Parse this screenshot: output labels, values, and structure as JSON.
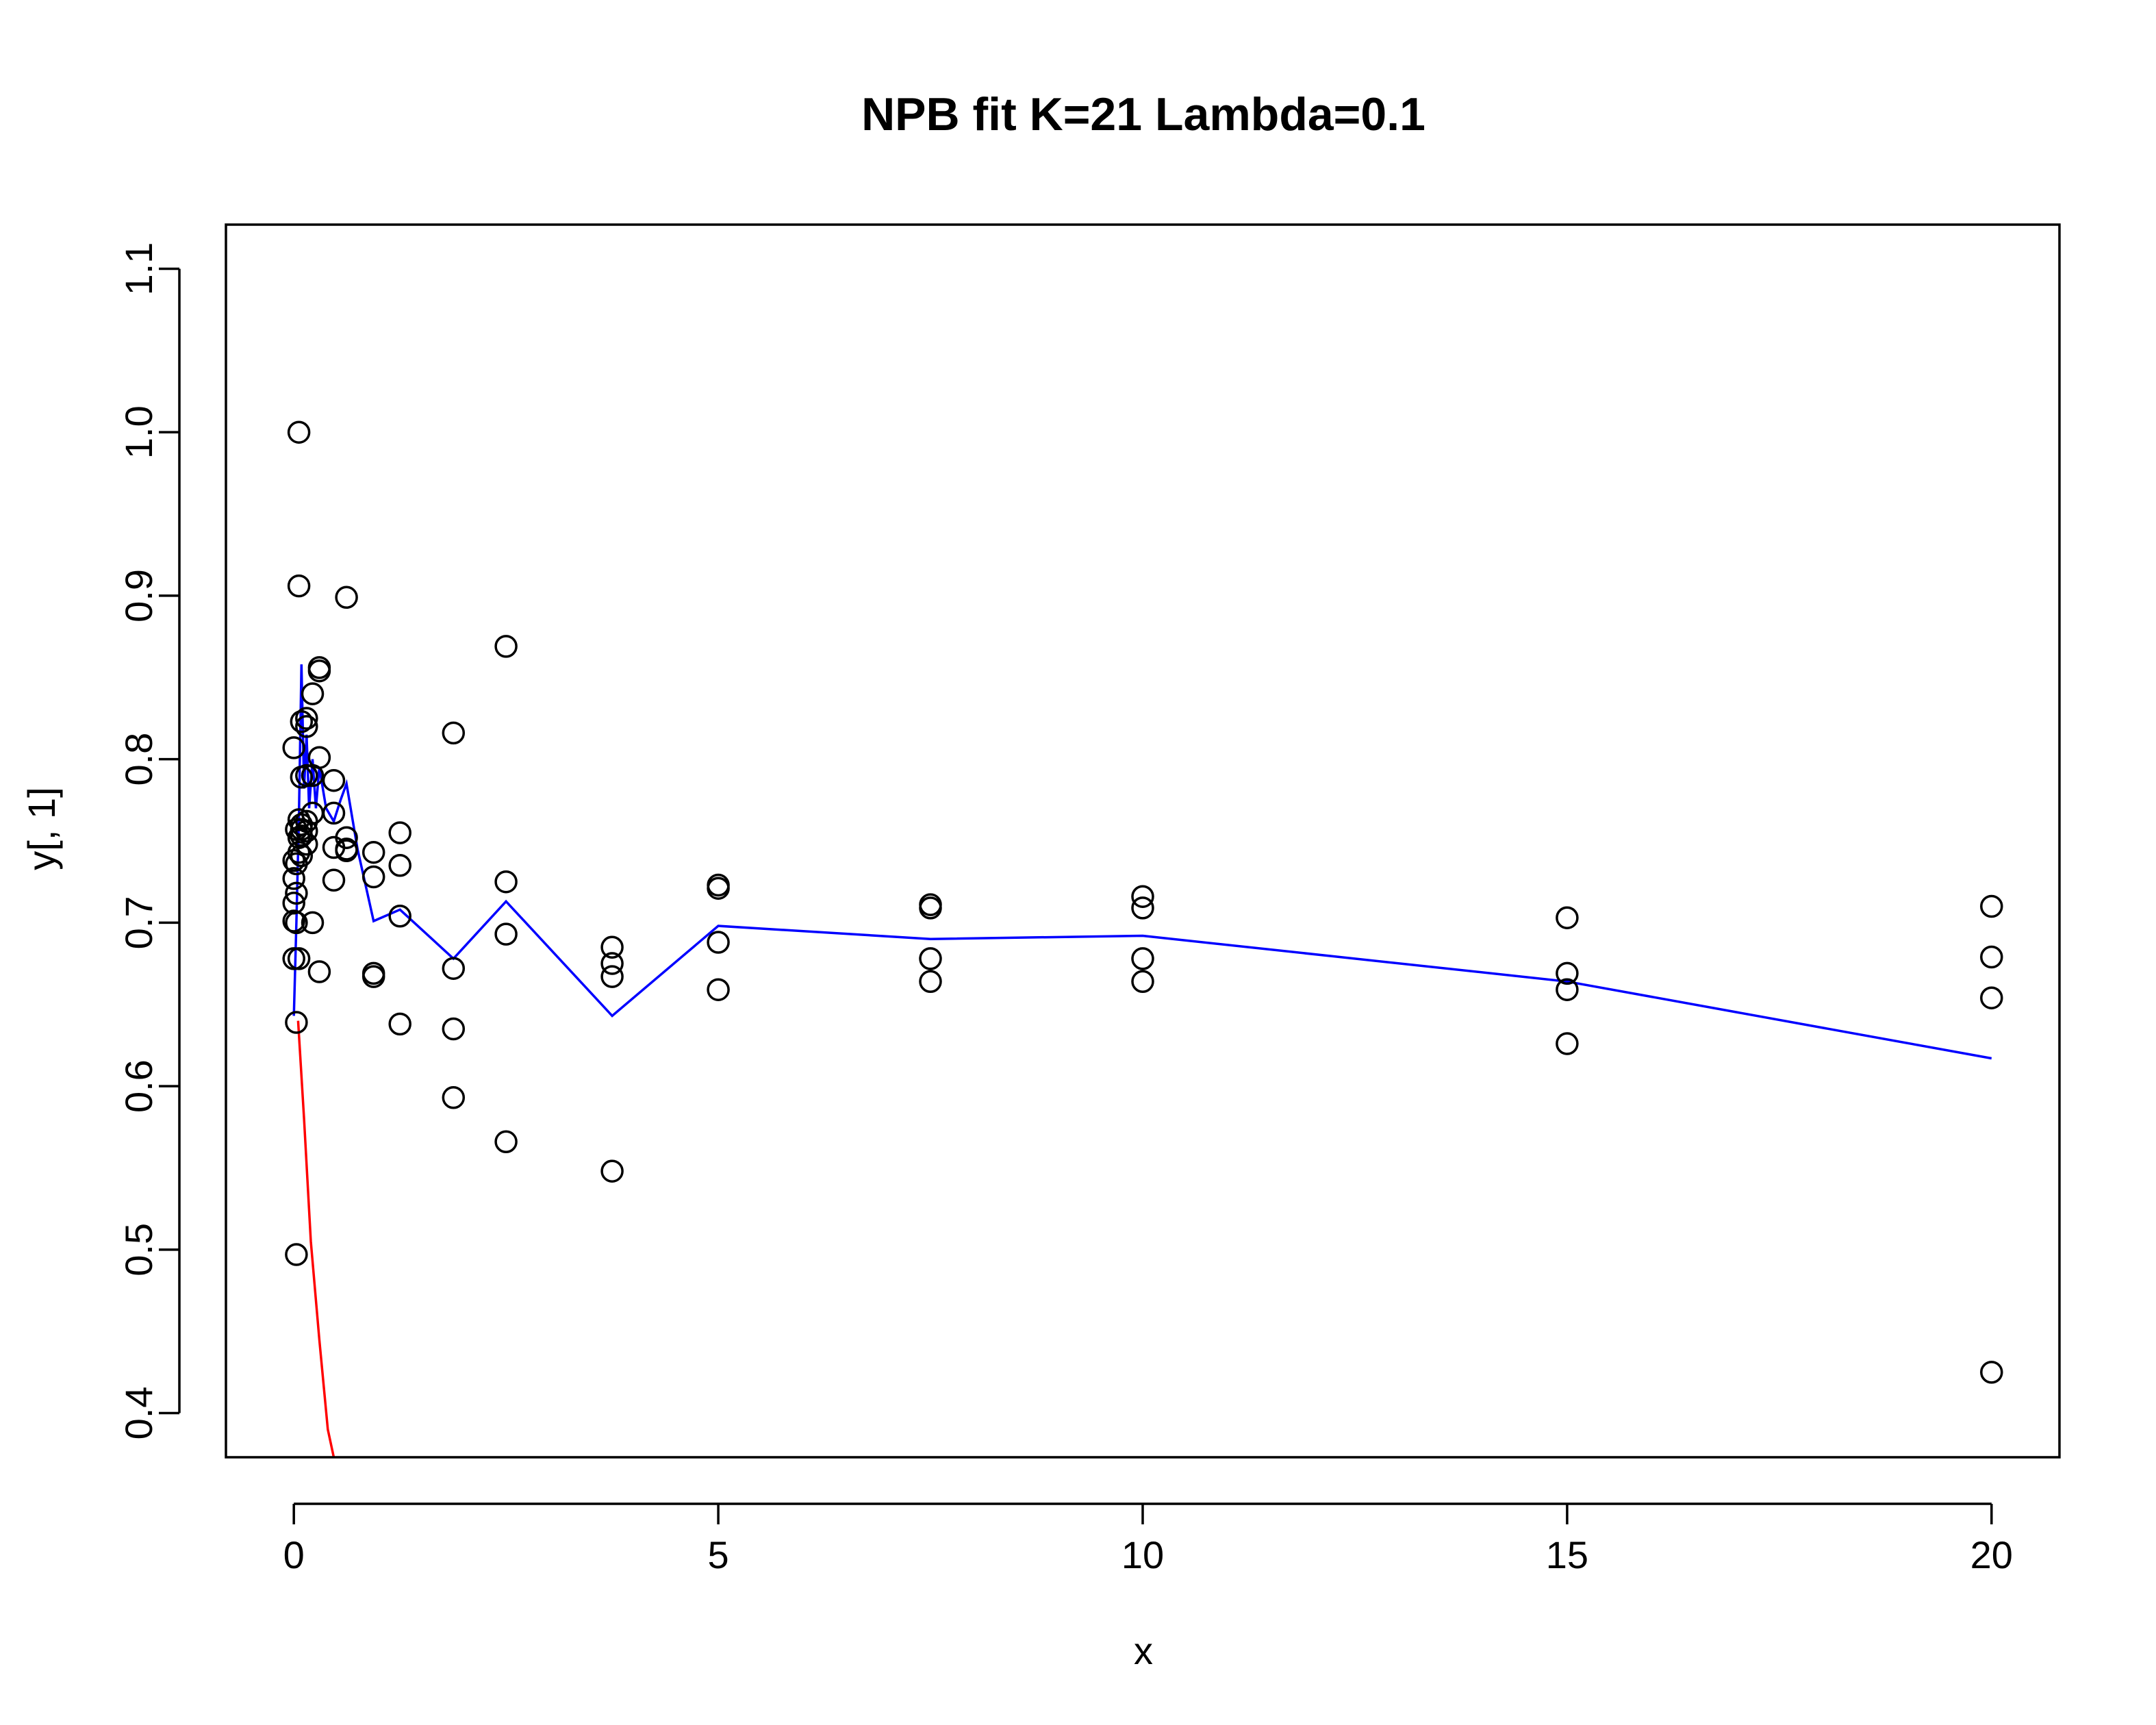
{
  "chart_data": {
    "type": "scatter",
    "title": "NPB fit K=21 Lambda=0.1",
    "xlabel": "x",
    "ylabel": "y[, 1]",
    "xlim": [
      -0.8,
      20.8
    ],
    "ylim": [
      0.373,
      1.127
    ],
    "xticks": [
      "0",
      "5",
      "10",
      "15",
      "20"
    ],
    "xtick_values": [
      0,
      5,
      10,
      15,
      20
    ],
    "yticks": [
      "0.4",
      "0.5",
      "0.6",
      "0.7",
      "0.8",
      "0.9",
      "1.0",
      "1.1"
    ],
    "ytick_values": [
      0.4,
      0.5,
      0.6,
      0.7,
      0.8,
      0.9,
      1.0,
      1.1
    ],
    "grid": false,
    "legend": "none",
    "colors": {
      "points": "#000000",
      "fit_line": "#0000ff",
      "decay_line": "#ff0000",
      "frame": "#000000"
    },
    "points": [
      [
        0.0,
        0.807
      ],
      [
        0.0,
        0.738
      ],
      [
        0.0,
        0.727
      ],
      [
        0.0,
        0.712
      ],
      [
        0.0,
        0.701
      ],
      [
        0.0,
        0.678
      ],
      [
        0.03,
        0.757
      ],
      [
        0.03,
        0.736
      ],
      [
        0.03,
        0.718
      ],
      [
        0.03,
        0.7
      ],
      [
        0.03,
        0.639
      ],
      [
        0.03,
        0.497
      ],
      [
        0.06,
        1.0
      ],
      [
        0.06,
        0.906
      ],
      [
        0.06,
        0.763
      ],
      [
        0.06,
        0.752
      ],
      [
        0.06,
        0.743
      ],
      [
        0.06,
        0.678
      ],
      [
        0.09,
        0.789
      ],
      [
        0.09,
        0.76
      ],
      [
        0.09,
        0.741
      ],
      [
        0.09,
        0.823
      ],
      [
        0.09,
        0.757
      ],
      [
        0.09,
        0.753
      ],
      [
        0.15,
        0.825
      ],
      [
        0.15,
        0.82
      ],
      [
        0.15,
        0.79
      ],
      [
        0.15,
        0.762
      ],
      [
        0.15,
        0.756
      ],
      [
        0.15,
        0.748
      ],
      [
        0.22,
        0.84
      ],
      [
        0.22,
        0.79
      ],
      [
        0.22,
        0.767
      ],
      [
        0.22,
        0.7
      ],
      [
        0.3,
        0.856
      ],
      [
        0.3,
        0.854
      ],
      [
        0.3,
        0.801
      ],
      [
        0.3,
        0.67
      ],
      [
        0.47,
        0.787
      ],
      [
        0.47,
        0.767
      ],
      [
        0.47,
        0.746
      ],
      [
        0.47,
        0.726
      ],
      [
        0.62,
        0.899
      ],
      [
        0.62,
        0.752
      ],
      [
        0.62,
        0.745
      ],
      [
        0.62,
        0.744
      ],
      [
        0.94,
        0.743
      ],
      [
        0.94,
        0.728
      ],
      [
        0.94,
        0.669
      ],
      [
        0.94,
        0.667
      ],
      [
        1.25,
        0.755
      ],
      [
        1.25,
        0.735
      ],
      [
        1.25,
        0.704
      ],
      [
        1.25,
        0.638
      ],
      [
        1.88,
        0.816
      ],
      [
        1.88,
        0.672
      ],
      [
        1.88,
        0.635
      ],
      [
        1.88,
        0.593
      ],
      [
        2.5,
        0.869
      ],
      [
        2.5,
        0.725
      ],
      [
        2.5,
        0.693
      ],
      [
        2.5,
        0.566
      ],
      [
        3.75,
        0.685
      ],
      [
        3.75,
        0.675
      ],
      [
        3.75,
        0.667
      ],
      [
        3.75,
        0.548
      ],
      [
        5.0,
        0.723
      ],
      [
        5.0,
        0.721
      ],
      [
        5.0,
        0.688
      ],
      [
        5.0,
        0.659
      ],
      [
        7.5,
        0.711
      ],
      [
        7.5,
        0.709
      ],
      [
        7.5,
        0.678
      ],
      [
        7.5,
        0.664
      ],
      [
        10.0,
        0.716
      ],
      [
        10.0,
        0.709
      ],
      [
        10.0,
        0.678
      ],
      [
        10.0,
        0.664
      ],
      [
        15.0,
        0.703
      ],
      [
        15.0,
        0.669
      ],
      [
        15.0,
        0.659
      ],
      [
        15.0,
        0.626
      ],
      [
        20.0,
        0.71
      ],
      [
        20.0,
        0.679
      ],
      [
        20.0,
        0.654
      ],
      [
        20.0,
        0.425
      ]
    ],
    "series": [
      {
        "style": "line",
        "color": "#0000ff",
        "x": [
          0.0,
          0.03,
          0.06,
          0.09,
          0.12,
          0.15,
          0.18,
          0.22,
          0.26,
          0.3,
          0.38,
          0.47,
          0.55,
          0.62,
          0.75,
          0.94,
          1.25,
          1.88,
          2.5,
          3.75,
          5.0,
          7.5,
          10.0,
          15.0,
          20.0
        ],
        "y": [
          0.643,
          0.7,
          0.765,
          0.858,
          0.782,
          0.815,
          0.77,
          0.8,
          0.77,
          0.795,
          0.77,
          0.762,
          0.775,
          0.785,
          0.745,
          0.701,
          0.708,
          0.678,
          0.713,
          0.643,
          0.698,
          0.69,
          0.692,
          0.664,
          0.617
        ]
      },
      {
        "style": "line",
        "color": "#ff0000",
        "x": [
          0.05,
          0.12,
          0.2,
          0.3,
          0.4,
          0.47
        ],
        "y": [
          0.64,
          0.58,
          0.505,
          0.445,
          0.39,
          0.373
        ]
      }
    ]
  }
}
